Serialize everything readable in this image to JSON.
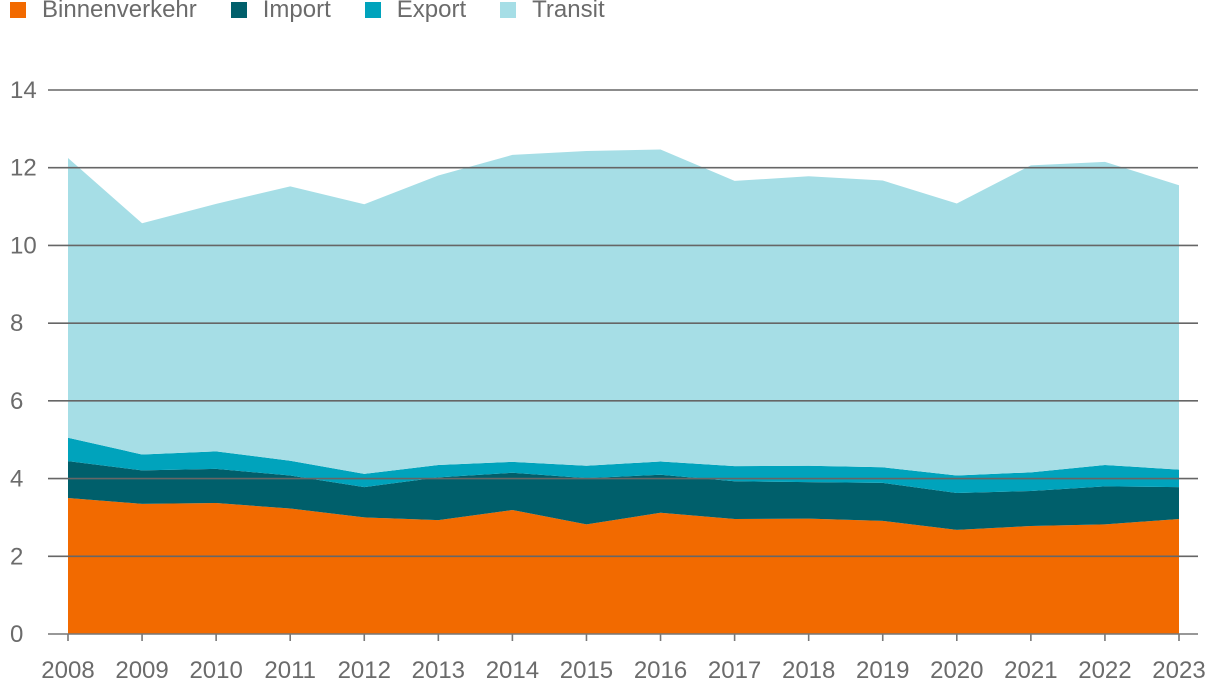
{
  "chart_data": {
    "type": "area",
    "stacked": true,
    "title": "",
    "xlabel": "",
    "ylabel": "",
    "ylim": [
      0,
      14
    ],
    "yticks": [
      0,
      2,
      4,
      6,
      8,
      10,
      12,
      14
    ],
    "grid": true,
    "legend_position": "top-left",
    "categories": [
      "2008",
      "2009",
      "2010",
      "2011",
      "2012",
      "2013",
      "2014",
      "2015",
      "2016",
      "2017",
      "2018",
      "2019",
      "2020",
      "2021",
      "2022",
      "2023"
    ],
    "series": [
      {
        "name": "Binnenverkehr",
        "color": "#f26a00",
        "values": [
          3.5,
          3.35,
          3.37,
          3.23,
          3.0,
          2.93,
          3.19,
          2.82,
          3.12,
          2.96,
          2.97,
          2.91,
          2.68,
          2.78,
          2.82,
          2.96
        ]
      },
      {
        "name": "Import",
        "color": "#005f6b",
        "values": [
          0.95,
          0.86,
          0.88,
          0.85,
          0.78,
          1.1,
          0.96,
          1.19,
          0.98,
          0.97,
          0.94,
          0.98,
          0.95,
          0.9,
          0.98,
          0.82
        ]
      },
      {
        "name": "Export",
        "color": "#00a3bc",
        "values": [
          0.6,
          0.41,
          0.45,
          0.38,
          0.34,
          0.32,
          0.28,
          0.32,
          0.34,
          0.39,
          0.42,
          0.4,
          0.45,
          0.48,
          0.55,
          0.45
        ]
      },
      {
        "name": "Transit",
        "color": "#a6dee6",
        "values": [
          7.2,
          5.95,
          6.37,
          7.06,
          6.94,
          7.45,
          7.9,
          8.1,
          8.03,
          7.34,
          7.45,
          7.38,
          7.0,
          7.9,
          7.8,
          7.32
        ]
      }
    ]
  }
}
